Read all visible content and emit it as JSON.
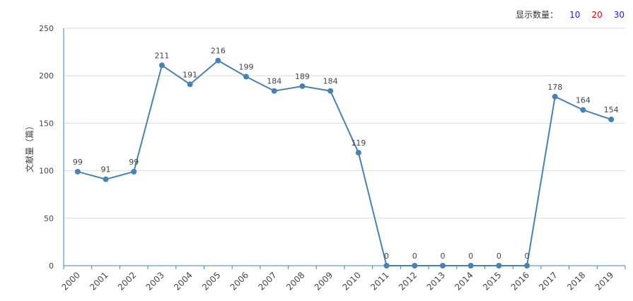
{
  "controls": {
    "label": "显示数量：",
    "options": [
      {
        "label": "10",
        "color": "#1a1aff"
      },
      {
        "label": "20",
        "color": "#e60012"
      },
      {
        "label": "30",
        "color": "#1a1aff"
      }
    ]
  },
  "chart_data": {
    "type": "line",
    "title": "",
    "xlabel": "",
    "ylabel": "文献量（篇）",
    "ylim": [
      0,
      250
    ],
    "yticks": [
      "0",
      "50",
      "100",
      "150",
      "200",
      "250"
    ],
    "ytick_values": [
      0,
      50,
      100,
      150,
      200,
      250
    ],
    "categories": [
      "2000",
      "2001",
      "2002",
      "2003",
      "2004",
      "2005",
      "2006",
      "2007",
      "2008",
      "2009",
      "2010",
      "2011",
      "2012",
      "2013",
      "2014",
      "2015",
      "2016",
      "2017",
      "2018",
      "2019"
    ],
    "series": [
      {
        "name": "文献量",
        "color": "#4682b4",
        "values": [
          99,
          91,
          99,
          211,
          191,
          216,
          199,
          184,
          189,
          184,
          119,
          0,
          0,
          0,
          0,
          0,
          0,
          178,
          164,
          154
        ],
        "labels": [
          "99",
          "91",
          "99",
          "211",
          "191",
          "216",
          "199",
          "184",
          "189",
          "184",
          "119",
          "0",
          "0",
          "0",
          "0",
          "0",
          "0",
          "178",
          "164",
          "154"
        ]
      }
    ],
    "grid": true,
    "legend": "none"
  }
}
